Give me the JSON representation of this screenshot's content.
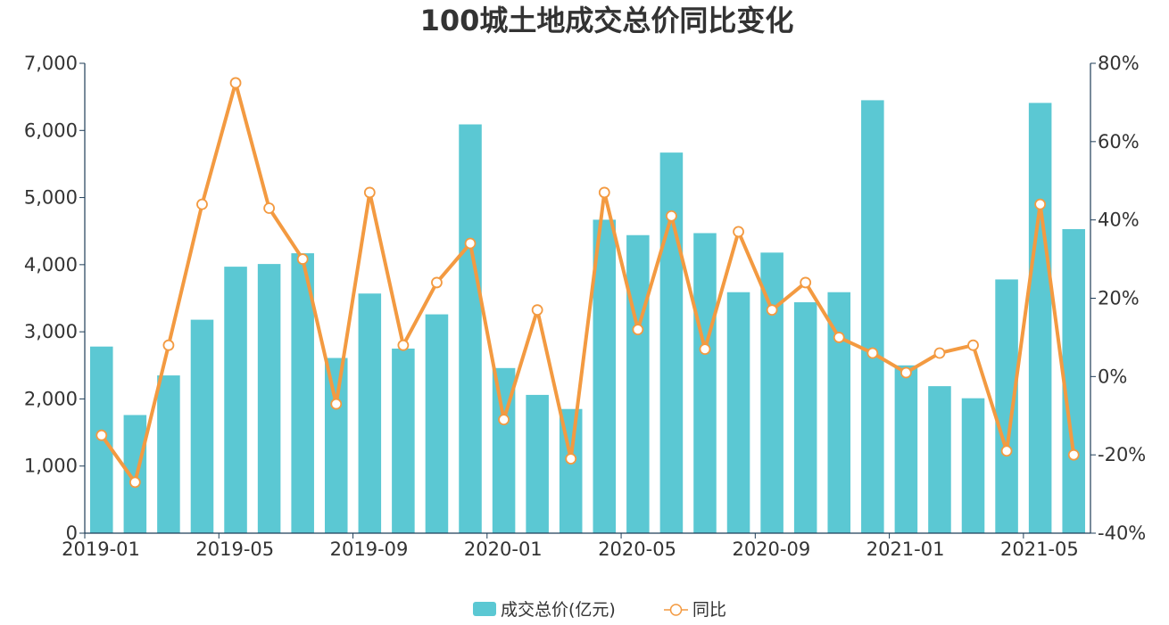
{
  "chart_data": {
    "type": "bar",
    "title": "100城土地成交总价同比变化",
    "categories": [
      "2019-01",
      "2019-02",
      "2019-03",
      "2019-04",
      "2019-05",
      "2019-06",
      "2019-07",
      "2019-08",
      "2019-09",
      "2019-10",
      "2019-11",
      "2019-12",
      "2020-01",
      "2020-02",
      "2020-03",
      "2020-04",
      "2020-05",
      "2020-06",
      "2020-07",
      "2020-08",
      "2020-09",
      "2020-10",
      "2020-11",
      "2020-12",
      "2021-01",
      "2021-02",
      "2021-03",
      "2021-04",
      "2021-05",
      "2021-06"
    ],
    "x_tick_labels": [
      "2019-01",
      "2019-05",
      "2019-09",
      "2020-01",
      "2020-05",
      "2020-09",
      "2021-01",
      "2021-05"
    ],
    "y_left": {
      "min": 0,
      "max": 7000,
      "ticks": [
        "0",
        "1,000",
        "2,000",
        "3,000",
        "4,000",
        "5,000",
        "6,000",
        "7,000"
      ]
    },
    "y_right": {
      "min": -40,
      "max": 80,
      "ticks": [
        "-40%",
        "-20%",
        "0%",
        "20%",
        "40%",
        "60%",
        "80%"
      ]
    },
    "series": [
      {
        "name": "成交总价(亿元)",
        "type": "bar",
        "axis": "left",
        "color": "#5bc8d3",
        "values": [
          2780,
          1760,
          2350,
          3180,
          3970,
          4010,
          4170,
          2610,
          3570,
          2750,
          3260,
          6090,
          2460,
          2060,
          1850,
          4670,
          4440,
          5670,
          4470,
          3590,
          4180,
          3440,
          3590,
          6450,
          2500,
          2190,
          2010,
          3780,
          6410,
          4530
        ]
      },
      {
        "name": "同比",
        "type": "line",
        "axis": "right",
        "color": "#f39a41",
        "values": [
          -15,
          -27,
          8,
          44,
          75,
          43,
          30,
          -7,
          47,
          8,
          24,
          34,
          -11,
          17,
          -21,
          47,
          12,
          41,
          7,
          37,
          17,
          24,
          10,
          6,
          1,
          6,
          8,
          -19,
          44,
          -20
        ]
      }
    ],
    "legend": {
      "position": "bottom-center"
    },
    "grid": false
  }
}
